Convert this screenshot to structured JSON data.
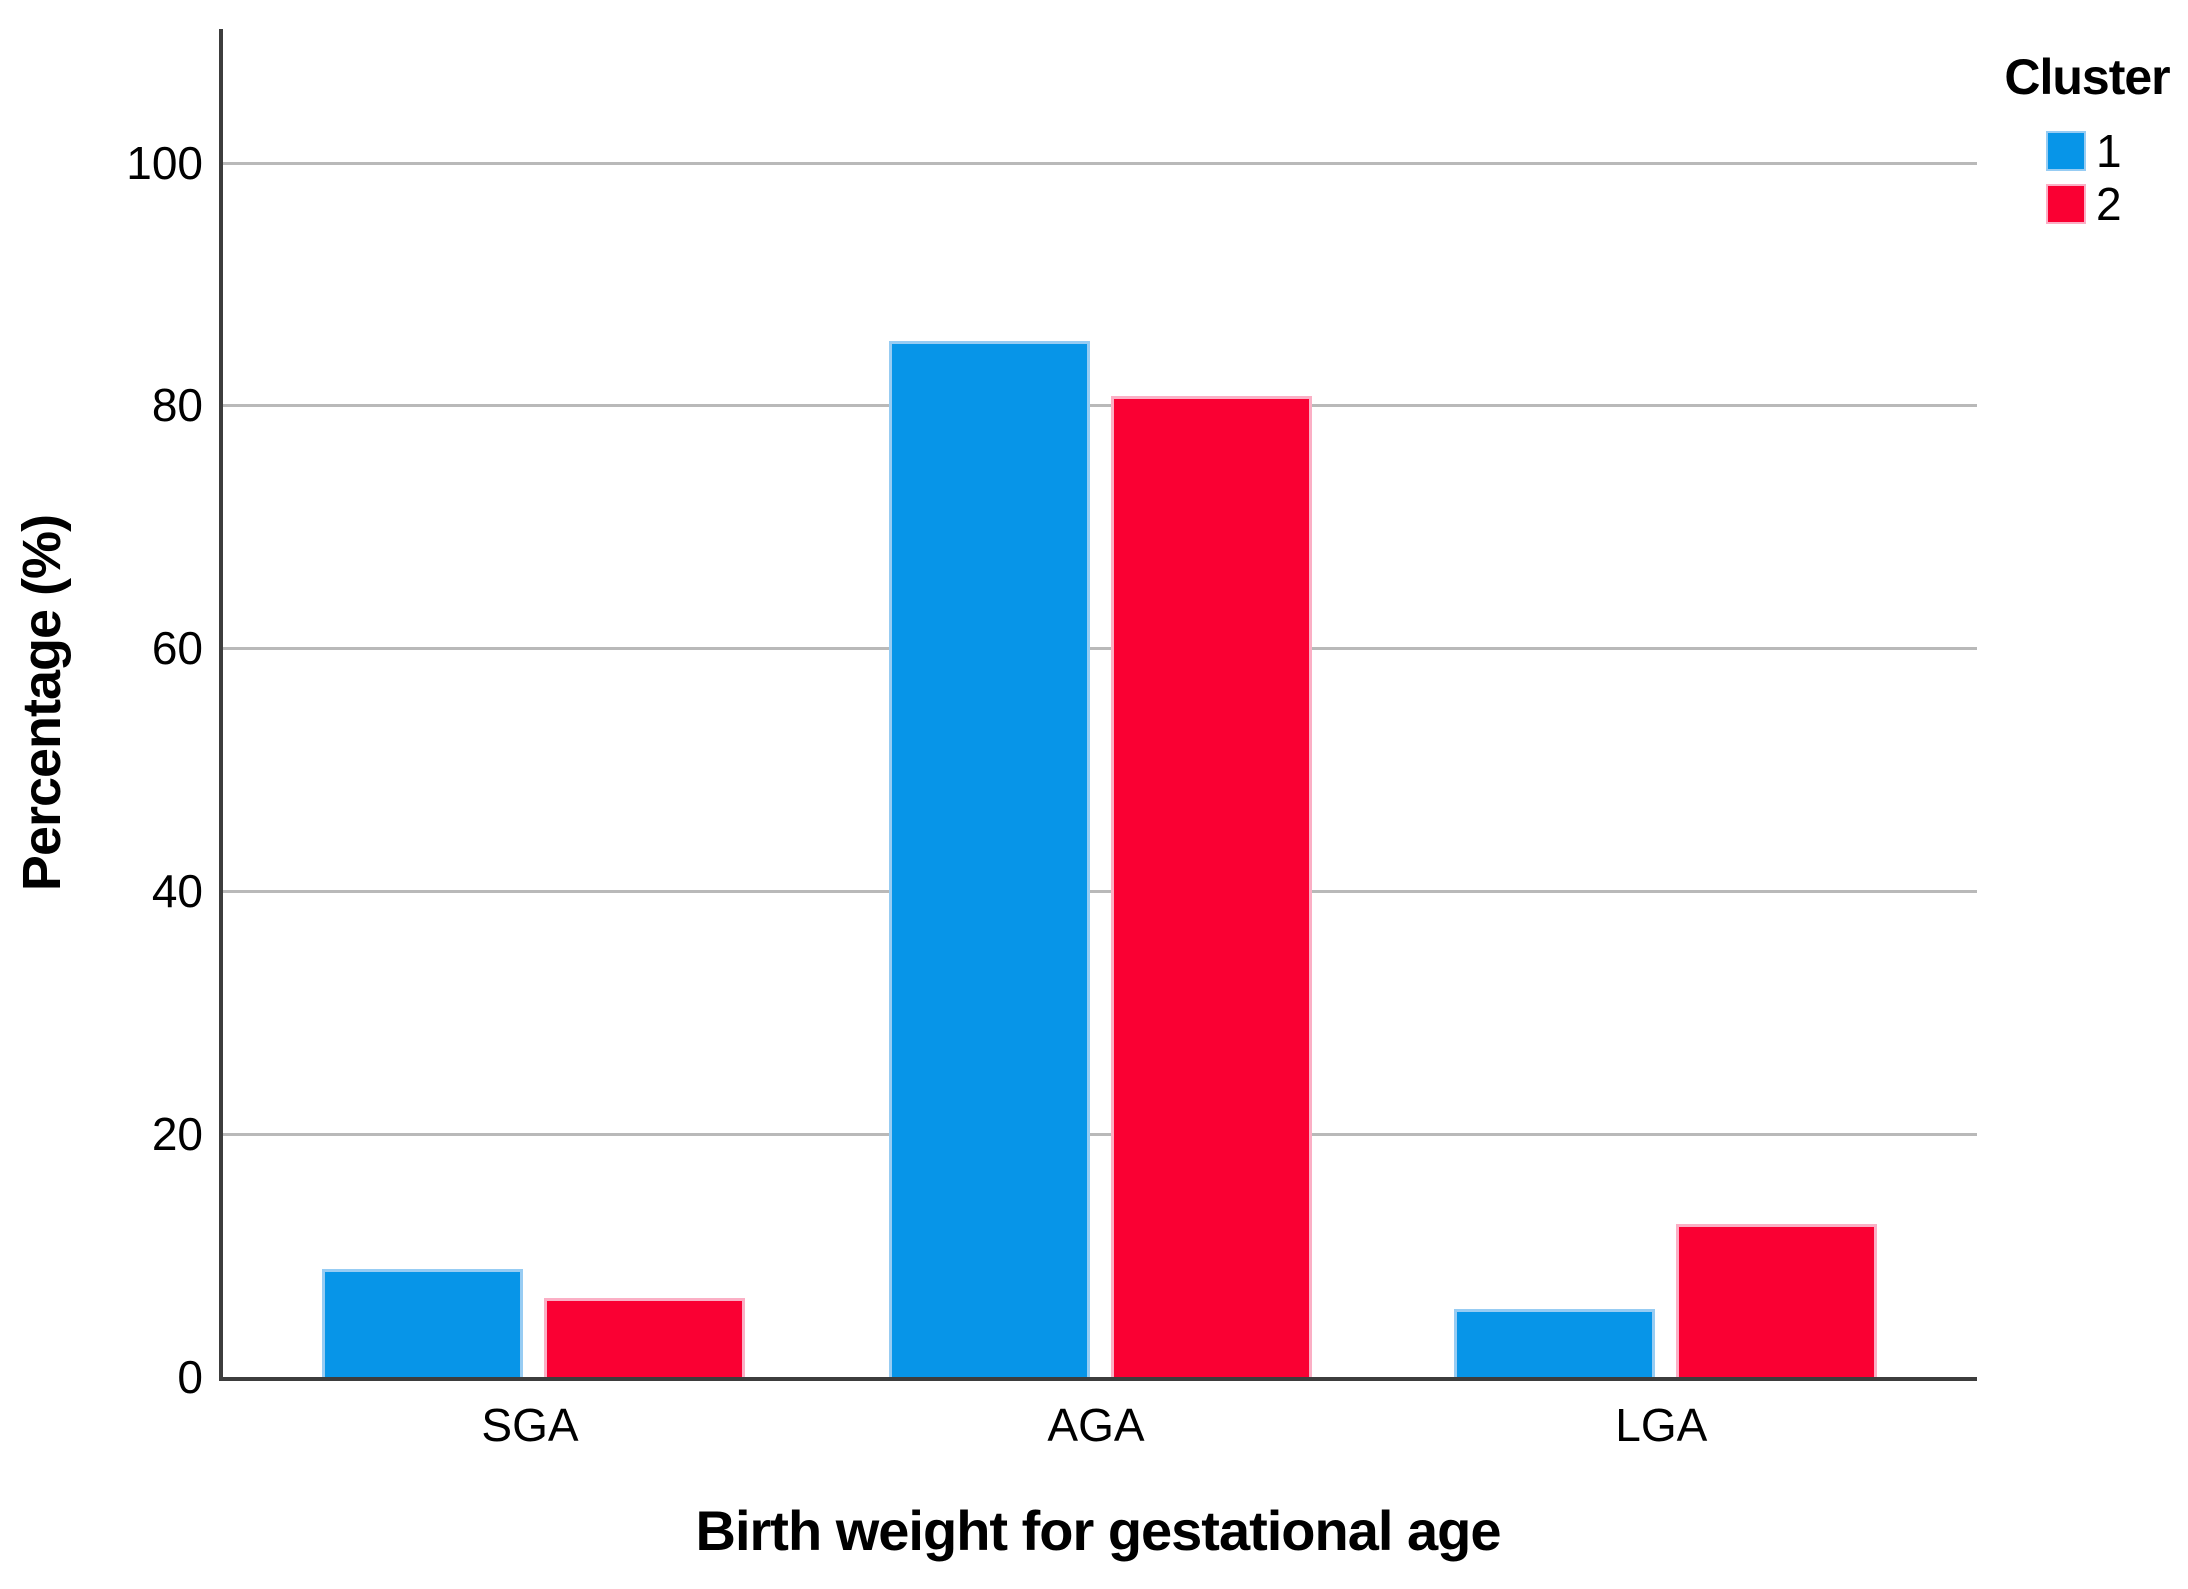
{
  "chart_data": {
    "type": "bar",
    "title": "",
    "xlabel": "Birth weight for gestational age",
    "ylabel": "Percentage (%)",
    "categories": [
      "SGA",
      "AGA",
      "LGA"
    ],
    "series": [
      {
        "name": "1",
        "color": "#0795E8",
        "edge_color": "#97CCF3",
        "values": [
          8.9,
          85.3,
          5.6
        ]
      },
      {
        "name": "2",
        "color": "#FA0033",
        "edge_color": "#FBAFC5",
        "values": [
          6.5,
          80.8,
          12.6
        ]
      }
    ],
    "legend_title": "Cluster",
    "legend_position": "top-right",
    "ylim": [
      0,
      111
    ],
    "yticks": [
      0,
      20,
      40,
      60,
      80,
      100
    ],
    "grid": "horizontal",
    "grid_color": "#b9b9b9",
    "axis_color": "#3d3d3d",
    "text_color": "#000000"
  }
}
